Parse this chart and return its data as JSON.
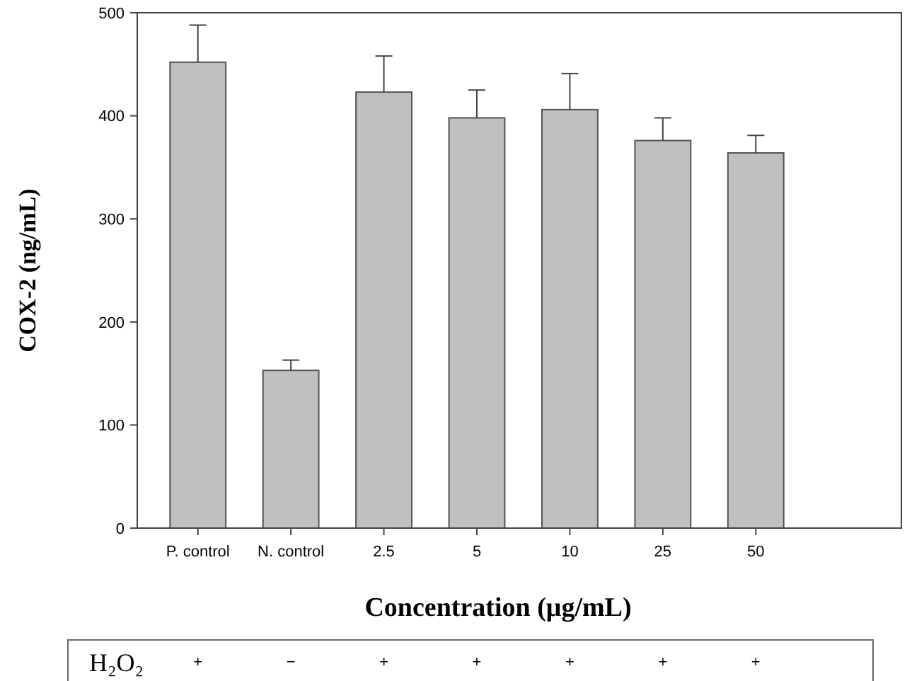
{
  "chart_data": {
    "type": "bar",
    "xlabel": "Concentration (μg/mL)",
    "ylabel": "COX-2 (ng/mL)",
    "categories": [
      "P. control",
      "N. control",
      "2.5",
      "5",
      "10",
      "25",
      "50"
    ],
    "values": [
      452,
      153,
      423,
      398,
      406,
      376,
      364
    ],
    "errors": [
      [
        452,
        488
      ],
      [
        153,
        163
      ],
      [
        423,
        458
      ],
      [
        398,
        425
      ],
      [
        406,
        441
      ],
      [
        376,
        398
      ],
      [
        364,
        381
      ]
    ],
    "color": "#c0c0c0",
    "ylim": [
      0,
      500
    ],
    "yticks": [
      0,
      100,
      200,
      300,
      400,
      500
    ],
    "annotations": [
      "H₂O₂",
      "+",
      "−",
      "+",
      "+",
      "+",
      "+",
      "+"
    ]
  }
}
